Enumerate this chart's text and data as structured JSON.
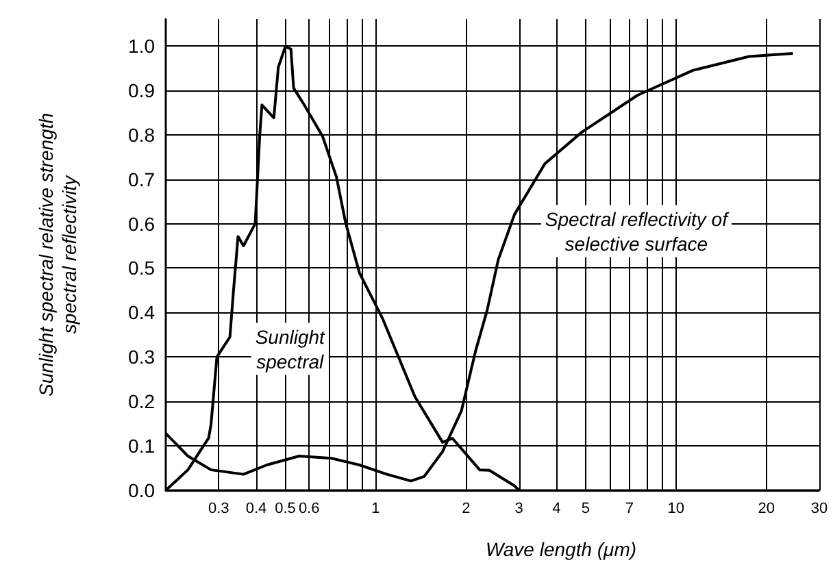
{
  "chart_data": {
    "type": "line",
    "xlabel": "Wave length (μm)",
    "ylabel": "Sunlight spectral relative strength\nspectral reflectivity",
    "log": "x",
    "xlim": [
      0.2,
      30
    ],
    "ylim": [
      0,
      1.06
    ],
    "xticks": [
      0.3,
      0.4,
      0.5,
      0.6,
      {
        "value": 0.7,
        "label": null
      },
      {
        "value": 0.8,
        "label": null
      },
      {
        "value": 0.9,
        "label": null
      },
      1,
      2,
      3,
      4,
      5,
      {
        "value": 6,
        "label": null
      },
      7,
      {
        "value": 8,
        "label": null
      },
      {
        "value": 9,
        "label": null
      },
      10,
      20,
      30
    ],
    "yticks": [
      {
        "value": 0,
        "label": "0.0"
      },
      0.1,
      0.2,
      0.3,
      0.4,
      0.5,
      0.6,
      0.7,
      0.8,
      0.9,
      {
        "value": 1,
        "label": "1.0"
      }
    ],
    "grid": true,
    "marker": "none",
    "line_style": "solid",
    "series": [
      {
        "color": "#000000",
        "x": [
          0.2,
          0.237,
          0.278,
          0.283,
          0.296,
          0.327,
          0.336,
          0.344,
          0.348,
          0.363,
          0.397,
          0.411,
          0.418,
          0.458,
          0.474,
          0.5,
          0.522,
          0.533,
          0.576,
          0.665,
          0.74,
          0.794,
          0.883,
          1.055,
          1.35,
          1.67,
          1.8,
          2.22,
          2.39,
          2.9,
          3
        ],
        "values": [
          0,
          0.046,
          0.118,
          0.149,
          0.3,
          0.345,
          0.448,
          0.53,
          0.571,
          0.55,
          0.6,
          0.797,
          0.867,
          0.838,
          0.952,
          0.998,
          0.993,
          0.905,
          0.869,
          0.797,
          0.705,
          0.602,
          0.489,
          0.386,
          0.211,
          0.108,
          0.117,
          0.046,
          0.045,
          0.01,
          0
        ]
      },
      {
        "color": "#000000",
        "x": [
          0.2,
          0.237,
          0.283,
          0.363,
          0.434,
          0.556,
          0.713,
          0.883,
          1.09,
          1.31,
          1.45,
          1.67,
          1.93,
          2.15,
          2.35,
          2.56,
          2.9,
          3.66,
          4.86,
          7.45,
          11.4,
          17.5,
          24.5
        ],
        "values": [
          0.128,
          0.077,
          0.046,
          0.036,
          0.057,
          0.077,
          0.072,
          0.057,
          0.036,
          0.021,
          0.031,
          0.087,
          0.179,
          0.313,
          0.405,
          0.519,
          0.621,
          0.735,
          0.806,
          0.889,
          0.945,
          0.976,
          0.983
        ]
      }
    ],
    "annotations": [
      "Sunlight\nspectral",
      "Spectral reflectivity of\nselective surface"
    ]
  }
}
